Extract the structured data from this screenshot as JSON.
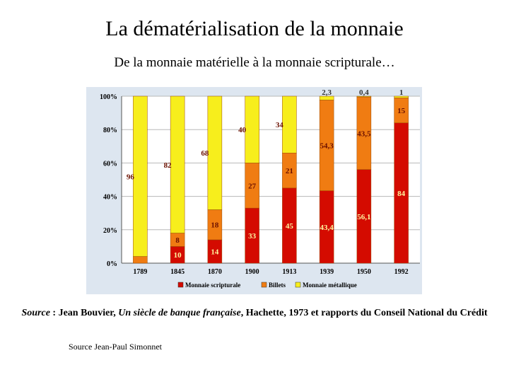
{
  "slide": {
    "title": "La dématérialisation de la monnaie",
    "subtitle": "De la monnaie matérielle à la monnaie scripturale…",
    "source_prefix": "Source",
    "source_sep": " : Jean Bouvier, ",
    "source_book": "Un siècle de banque française",
    "source_rest": ", Hachette, 1973 et rapports du Conseil National du Crédit",
    "credit": "Source Jean-Paul Simonnet"
  },
  "colors": {
    "scripturale": "#d40b00",
    "billets": "#f07c12",
    "metallique": "#f7ee1c",
    "plot_bg": "#ffffff",
    "chart_bg": "#dde6f0",
    "label_dark": "#6b1000",
    "label_light": "#fff6a0"
  },
  "chart_data": {
    "type": "bar",
    "stacked": true,
    "categories": [
      "1789",
      "1845",
      "1870",
      "1900",
      "1913",
      "1939",
      "1950",
      "1992"
    ],
    "series": [
      {
        "name": "Monnaie scripturale",
        "values": [
          0,
          10,
          14,
          33,
          45,
          43.4,
          56.1,
          84
        ],
        "labels": [
          "",
          "10",
          "14",
          "33",
          "45",
          "43,4",
          "56,1",
          "84"
        ]
      },
      {
        "name": "Billets",
        "values": [
          4,
          8,
          18,
          27,
          21,
          54.3,
          43.5,
          15
        ],
        "labels": [
          "",
          "8",
          "18",
          "27",
          "21",
          "54,3",
          "43,5",
          "15"
        ]
      },
      {
        "name": "Monnaie métallique",
        "values": [
          96,
          82,
          68,
          40,
          34,
          2.3,
          0.4,
          1
        ],
        "labels": [
          "96",
          "82",
          "68",
          "40",
          "34",
          "2,3",
          "0,4",
          "1"
        ]
      }
    ],
    "ylim": [
      0,
      100
    ],
    "yticks": [
      "0%",
      "20%",
      "40%",
      "60%",
      "80%",
      "100%"
    ],
    "legend": [
      "Monnaie scripturale",
      "Billets",
      "Monnaie métallique"
    ],
    "legend_position": "bottom"
  }
}
